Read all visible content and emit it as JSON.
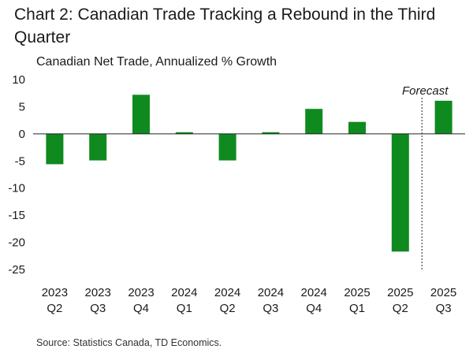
{
  "chart_data": {
    "type": "bar",
    "title": "Chart 2: Canadian Trade Tracking a Rebound in the Third Quarter",
    "subtitle": "Canadian Net Trade, Annualized % Growth",
    "categories": [
      [
        "2023",
        "Q2"
      ],
      [
        "2023",
        "Q3"
      ],
      [
        "2023",
        "Q4"
      ],
      [
        "2024",
        "Q1"
      ],
      [
        "2024",
        "Q2"
      ],
      [
        "2024",
        "Q3"
      ],
      [
        "2024",
        "Q4"
      ],
      [
        "2025",
        "Q1"
      ],
      [
        "2025",
        "Q2"
      ],
      [
        "2025",
        "Q3"
      ]
    ],
    "values": [
      -5.6,
      -4.9,
      7.2,
      0.3,
      -4.9,
      0.3,
      4.6,
      2.2,
      -21.7,
      6.1
    ],
    "ylim": [
      -25,
      10
    ],
    "yticks": [
      10,
      5,
      0,
      -5,
      -10,
      -15,
      -20,
      -25
    ],
    "bar_color": "#0f8a1f",
    "annotation": {
      "text": "Forecast",
      "before_category_index": 9
    },
    "grid": false,
    "legend": "none"
  },
  "source": "Source: Statistics Canada, TD Economics."
}
